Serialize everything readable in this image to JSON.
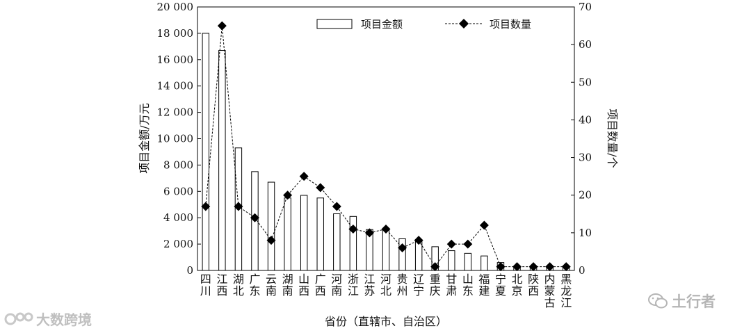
{
  "chart_data": {
    "type": "bar+line",
    "categories": [
      "四川",
      "江西",
      "湖北",
      "广东",
      "云南",
      "湖南",
      "山西",
      "广西",
      "河南",
      "浙江",
      "江苏",
      "河北",
      "贵州",
      "辽宁",
      "重庆",
      "甘肃",
      "山东",
      "福建",
      "宁夏",
      "北京",
      "陕西",
      "内蒙古",
      "黑龙江"
    ],
    "series": [
      {
        "name": "项目金额",
        "type": "bar",
        "axis": "left",
        "values": [
          18000,
          16700,
          9300,
          7500,
          6700,
          5500,
          5700,
          5500,
          4300,
          4100,
          3100,
          3100,
          2400,
          2200,
          1800,
          1500,
          1300,
          1100,
          600,
          200,
          200,
          200,
          200
        ]
      },
      {
        "name": "项目数量",
        "type": "line",
        "axis": "right",
        "style": "dashed",
        "marker": "diamond",
        "values": [
          17,
          65,
          17,
          14,
          8,
          20,
          25,
          22,
          17,
          11,
          10,
          11,
          6,
          8,
          1,
          7,
          7,
          12,
          1,
          1,
          1,
          1,
          1
        ]
      }
    ],
    "xlabel": "省份（直辖市、自治区）",
    "ylabel": "项目金额/万元",
    "y2label": "项目数量/个",
    "ylim": [
      0,
      20000
    ],
    "y2lim": [
      0,
      70
    ],
    "yticks": [
      "0",
      "2 000",
      "4 000",
      "6 000",
      "8 000",
      "10 000",
      "12 000",
      "14 000",
      "16 000",
      "18 000",
      "20 000"
    ],
    "y2ticks": [
      "0",
      "10",
      "20",
      "30",
      "40",
      "50",
      "60",
      "70"
    ],
    "legend_position": "top",
    "grid": false
  },
  "watermarks": {
    "left": "大数跨境",
    "right": "土行者"
  },
  "colors": {
    "axis": "#000000",
    "bar_fill": "#ffffff",
    "marker": "#000000"
  }
}
